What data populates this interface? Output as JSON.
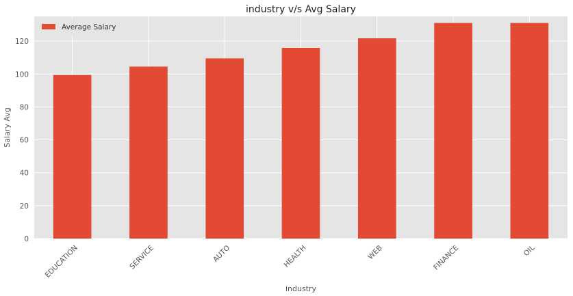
{
  "chart_data": {
    "type": "bar",
    "title": "industry v/s Avg Salary",
    "xlabel": "industry",
    "ylabel": "Salary Avg",
    "categories": [
      "EDUCATION",
      "SERVICE",
      "AUTO",
      "HEALTH",
      "WEB",
      "FINANCE",
      "OIL"
    ],
    "series": [
      {
        "name": "Average Salary",
        "values": [
          99.4,
          104.5,
          109.5,
          115.9,
          121.7,
          131.0,
          131.0
        ],
        "color": "#E24A33"
      }
    ],
    "ylim": [
      0,
      135
    ],
    "yticks": [
      0,
      20,
      40,
      60,
      80,
      100,
      120
    ],
    "grid": true,
    "legend_position": "top-left",
    "colors": {
      "plot_background": "#E5E5E5",
      "grid": "#FFFFFF",
      "bar": "#E24A33"
    }
  }
}
